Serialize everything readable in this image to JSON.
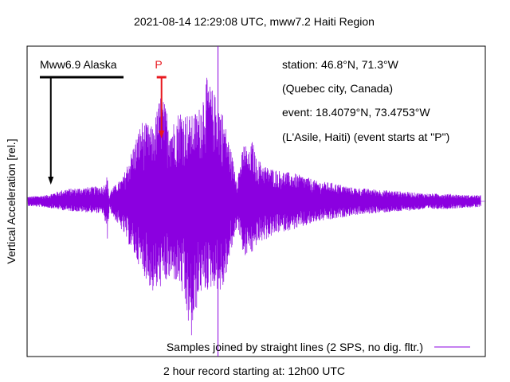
{
  "chart_data": {
    "type": "line",
    "title": "2021-08-14 12:29:08 UTC, mww7.2 Haiti Region",
    "xlabel": "2 hour record starting at: 12h00 UTC",
    "ylabel": "Vertical Acceleration [rel.]",
    "grid": false,
    "legend_position": "bottom-right",
    "legend_label": "Samples joined by straight lines (2 SPS, no dig. fltr.)",
    "xlim": [
      0,
      120
    ],
    "ylim": [
      -1,
      1
    ],
    "x_unit": "minutes after 12h00 UTC",
    "envelope_minutes": [
      0,
      5,
      10,
      20,
      21,
      21.5,
      22,
      25,
      30,
      33,
      35,
      38,
      40,
      43,
      45,
      47,
      49,
      51,
      55,
      57,
      58,
      59,
      60,
      63,
      66,
      70,
      73,
      76,
      80,
      85,
      90,
      95,
      100,
      105,
      110,
      115,
      120
    ],
    "envelope_positive": [
      0.03,
      0.04,
      0.08,
      0.1,
      0.17,
      0.02,
      0.08,
      0.15,
      0.52,
      0.48,
      0.7,
      0.5,
      0.6,
      0.55,
      0.6,
      0.8,
      0.7,
      0.6,
      0.15,
      0.4,
      0.3,
      0.4,
      0.28,
      0.22,
      0.2,
      0.18,
      0.16,
      0.13,
      0.12,
      0.09,
      0.08,
      0.07,
      0.06,
      0.05,
      0.05,
      0.04,
      0.04
    ],
    "envelope_negative": [
      -0.03,
      -0.04,
      -0.06,
      -0.08,
      -0.25,
      -0.03,
      -0.08,
      -0.2,
      -0.45,
      -0.6,
      -0.55,
      -0.5,
      -0.55,
      -0.9,
      -0.6,
      -0.58,
      -0.55,
      -0.6,
      -0.15,
      -0.4,
      -0.3,
      -0.35,
      -0.28,
      -0.24,
      -0.2,
      -0.18,
      -0.16,
      -0.13,
      -0.12,
      -0.09,
      -0.08,
      -0.07,
      -0.06,
      -0.05,
      -0.05,
      -0.04,
      -0.04
    ],
    "vertical_marker_minute": 50,
    "annotations": [
      {
        "label": "Mww6.9 Alaska",
        "minute": 6,
        "color": "#000000"
      },
      {
        "label": "P",
        "minute": 35,
        "color": "#e8191f"
      }
    ],
    "info_lines": [
      "station: 46.8°N, 71.3°W",
      "(Quebec city, Canada)",
      "event: 18.4079°N, 73.4753°W",
      "(L'Asile, Haiti) (event starts at \"P\")"
    ],
    "series_color": "#8b00e0"
  }
}
